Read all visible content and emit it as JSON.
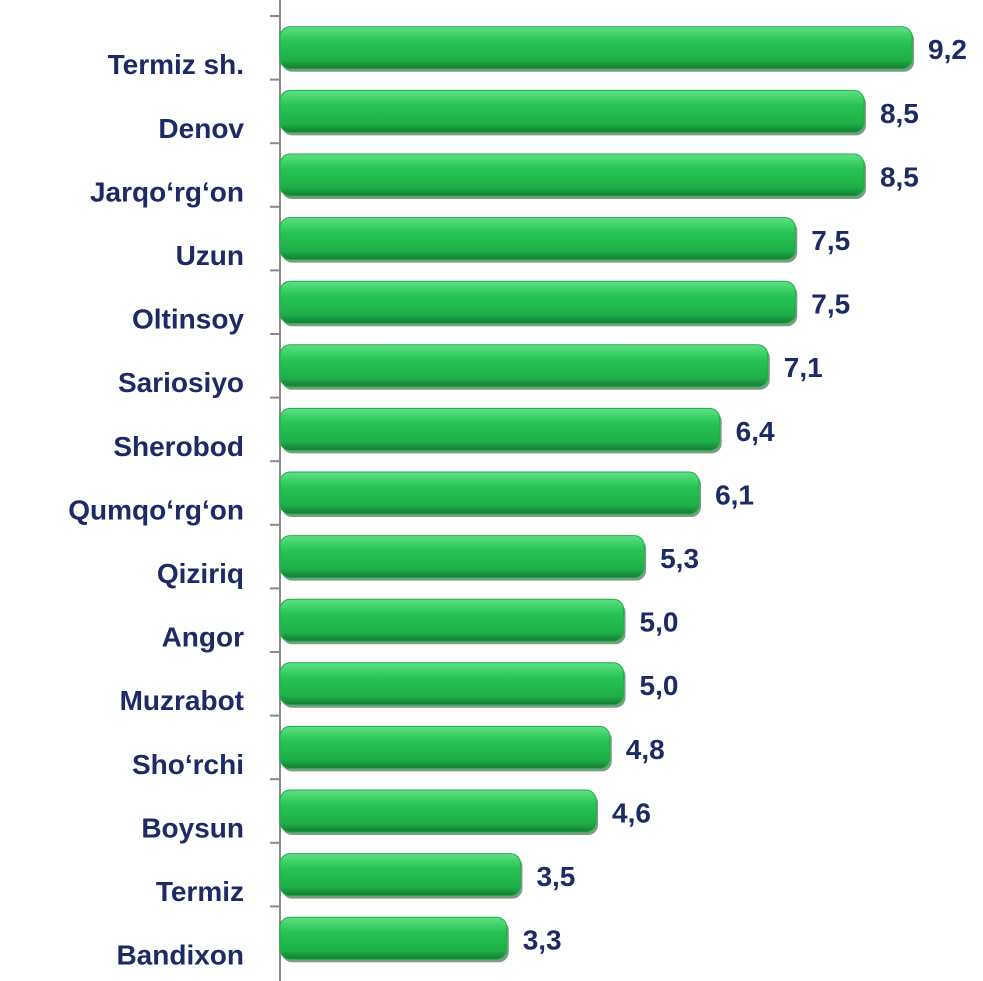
{
  "chart_data": {
    "type": "bar",
    "orientation": "horizontal",
    "categories": [
      "Termiz sh.",
      "Denov",
      "Jarqo‘rg‘on",
      "Uzun",
      "Oltinsoy",
      "Sariosiyo",
      "Sherobod",
      "Qumqo‘rg‘on",
      "Qiziriq",
      "Angor",
      "Muzrabot",
      "Sho‘rchi",
      "Boysun",
      "Termiz",
      "Bandixon"
    ],
    "values": [
      9.2,
      8.5,
      8.5,
      7.5,
      7.5,
      7.1,
      6.4,
      6.1,
      5.3,
      5.0,
      5.0,
      4.8,
      4.6,
      3.5,
      3.3
    ],
    "value_labels": [
      "9,2",
      "8,5",
      "8,5",
      "7,5",
      "7,5",
      "7,1",
      "6,4",
      "6,1",
      "5,3",
      "5,0",
      "5,0",
      "4,8",
      "4,6",
      "3,5",
      "3,3"
    ],
    "color": "#1fae48",
    "xlim": [
      0,
      10
    ]
  }
}
